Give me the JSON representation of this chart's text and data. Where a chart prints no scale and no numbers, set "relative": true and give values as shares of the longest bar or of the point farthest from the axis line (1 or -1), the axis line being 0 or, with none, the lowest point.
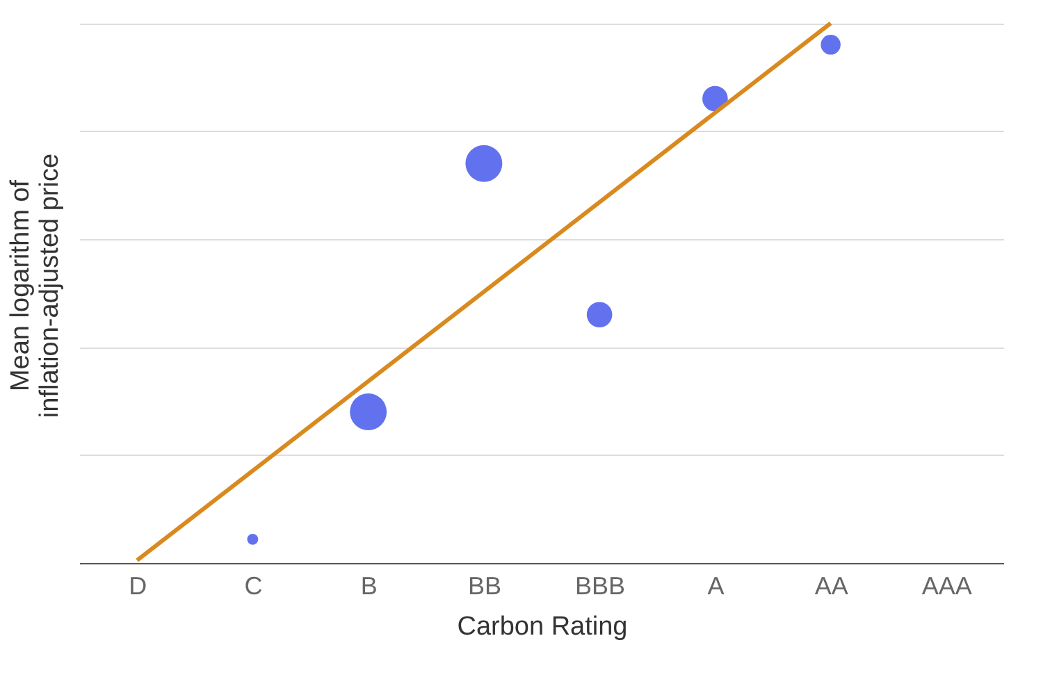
{
  "chart_data": {
    "type": "bubble",
    "relative": true,
    "xlabel": "Carbon Rating",
    "ylabel": "Mean logarithm of\ninflation-adjusted price",
    "categories": [
      "D",
      "C",
      "B",
      "BB",
      "BBB",
      "A",
      "AA",
      "AAA"
    ],
    "grid": "y",
    "legend": false,
    "series": [
      {
        "color": "#6272ee",
        "values": [
          null,
          0.044,
          0.28,
          0.74,
          0.46,
          0.86,
          0.96,
          null
        ],
        "sizes": [
          null,
          0.09,
          1,
          1,
          0.48,
          0.48,
          0.29,
          null
        ]
      },
      {
        "type": "line",
        "color": "#d98a1e",
        "x": [
          "D",
          "AA"
        ],
        "values": [
          0.005,
          1.0
        ],
        "marker": "none"
      }
    ]
  }
}
